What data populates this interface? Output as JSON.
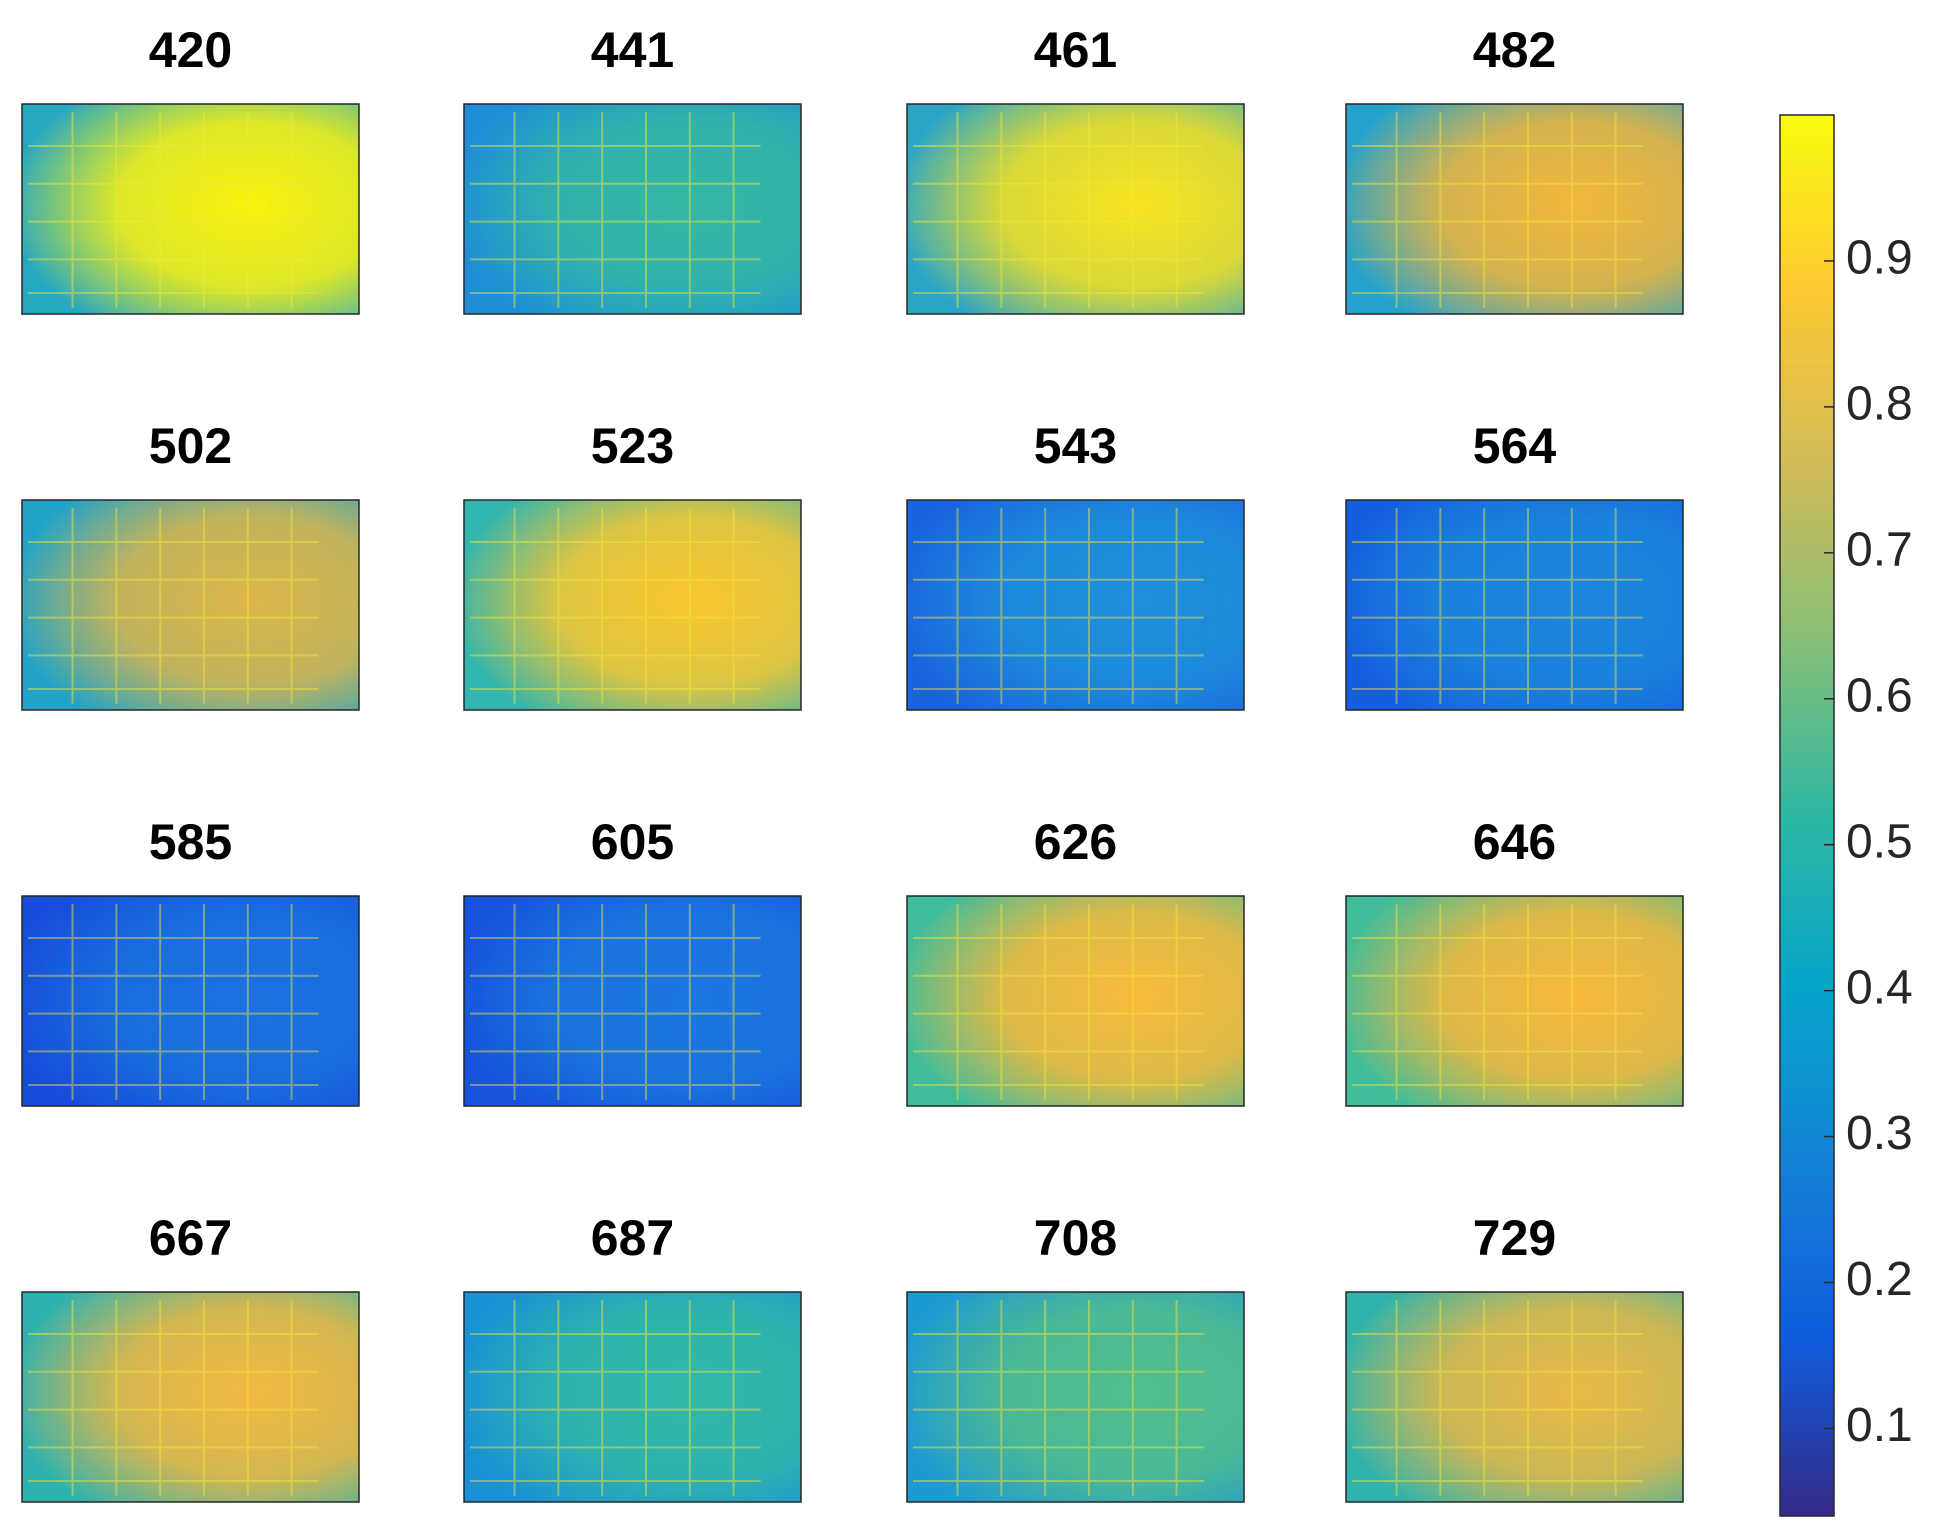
{
  "chart_data": {
    "type": "heatmap-grid",
    "panels": [
      {
        "title": "420",
        "colors": [
          "#fbf20e",
          "#27a8c2"
        ]
      },
      {
        "title": "441",
        "colors": [
          "#34b8a4",
          "#1e8ed8"
        ]
      },
      {
        "title": "461",
        "colors": [
          "#f8e21f",
          "#2aa5c6"
        ]
      },
      {
        "title": "482",
        "colors": [
          "#f3b63a",
          "#25a2cb"
        ]
      },
      {
        "title": "502",
        "colors": [
          "#ddb64a",
          "#20a3c8"
        ]
      },
      {
        "title": "523",
        "colors": [
          "#fbc72f",
          "#31b5ae"
        ]
      },
      {
        "title": "543",
        "colors": [
          "#1e8fda",
          "#1963df"
        ]
      },
      {
        "title": "564",
        "colors": [
          "#1b87db",
          "#155edf"
        ]
      },
      {
        "title": "585",
        "colors": [
          "#1a72df",
          "#164edb"
        ]
      },
      {
        "title": "605",
        "colors": [
          "#1b78df",
          "#1652dc"
        ]
      },
      {
        "title": "626",
        "colors": [
          "#f8ba3a",
          "#3fbc9c"
        ]
      },
      {
        "title": "646",
        "colors": [
          "#f8b83b",
          "#40bc9a"
        ]
      },
      {
        "title": "667",
        "colors": [
          "#f2b840",
          "#2eb2b0"
        ]
      },
      {
        "title": "687",
        "colors": [
          "#33b8a7",
          "#1a90d7"
        ]
      },
      {
        "title": "708",
        "colors": [
          "#52be8c",
          "#1e9ad3"
        ]
      },
      {
        "title": "729",
        "colors": [
          "#e9b846",
          "#2fb3ac"
        ]
      }
    ],
    "colorbar": {
      "ylim": [
        0.04,
        1.0
      ],
      "yticks": [
        0.1,
        0.2,
        0.3,
        0.4,
        0.5,
        0.6,
        0.7,
        0.8,
        0.9
      ],
      "colormap": [
        "#352a87",
        "#0f5cdd",
        "#1481d6",
        "#06a4ca",
        "#2eb7a4",
        "#87bf77",
        "#d1bb59",
        "#fec832",
        "#f9fb0e"
      ]
    }
  }
}
